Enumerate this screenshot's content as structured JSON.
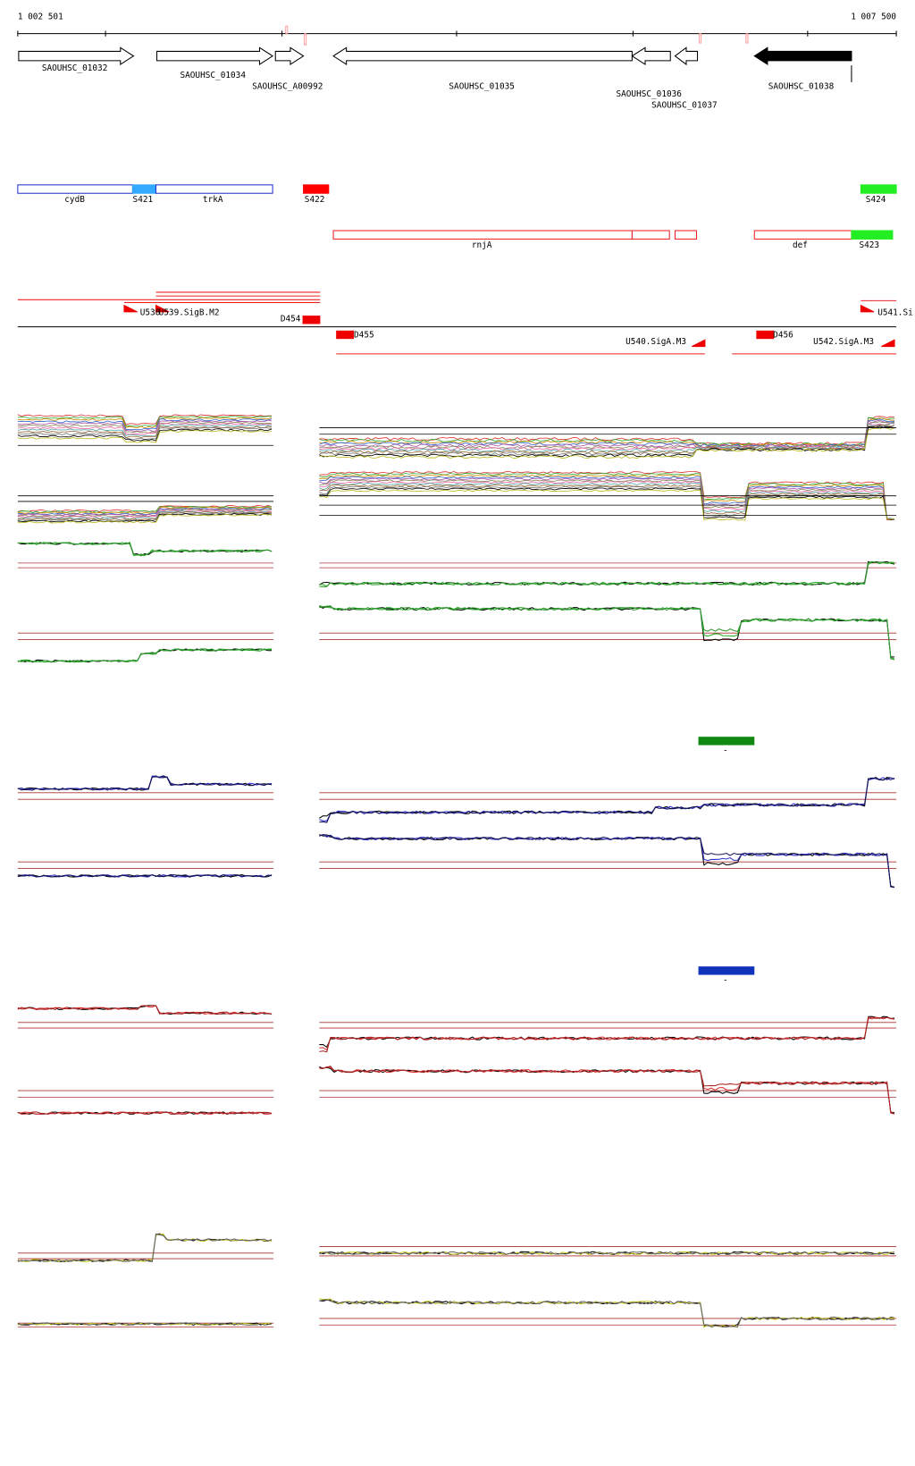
{
  "ruler": {
    "start": "1 002 501",
    "end": "1 007 500"
  },
  "genes": [
    {
      "label": "SAOUHSC_01032"
    },
    {
      "label": "SAOUHSC_01034"
    },
    {
      "label": "SAOUHSC_A00992"
    },
    {
      "label": "SAOUHSC_01035"
    },
    {
      "label": "SAOUHSC_01036"
    },
    {
      "label": "SAOUHSC_01037"
    },
    {
      "label": "SAOUHSC_01038"
    }
  ],
  "features": [
    {
      "label": "cydB"
    },
    {
      "label": "S421"
    },
    {
      "label": "trkA"
    },
    {
      "label": "S422"
    },
    {
      "label": "S424"
    },
    {
      "label": "rnjA"
    },
    {
      "label": "def"
    },
    {
      "label": "S423"
    }
  ],
  "sites": [
    {
      "label": "U538"
    },
    {
      "label": "U539.SigB.M2"
    },
    {
      "label": "D454"
    },
    {
      "label": "D455"
    },
    {
      "label": "U540.SigA.M3"
    },
    {
      "label": "D456"
    },
    {
      "label": "U542.SigA.M3"
    },
    {
      "label": "U541.Si"
    }
  ],
  "legends": [
    {
      "label": "-"
    },
    {
      "label": "-"
    }
  ]
}
